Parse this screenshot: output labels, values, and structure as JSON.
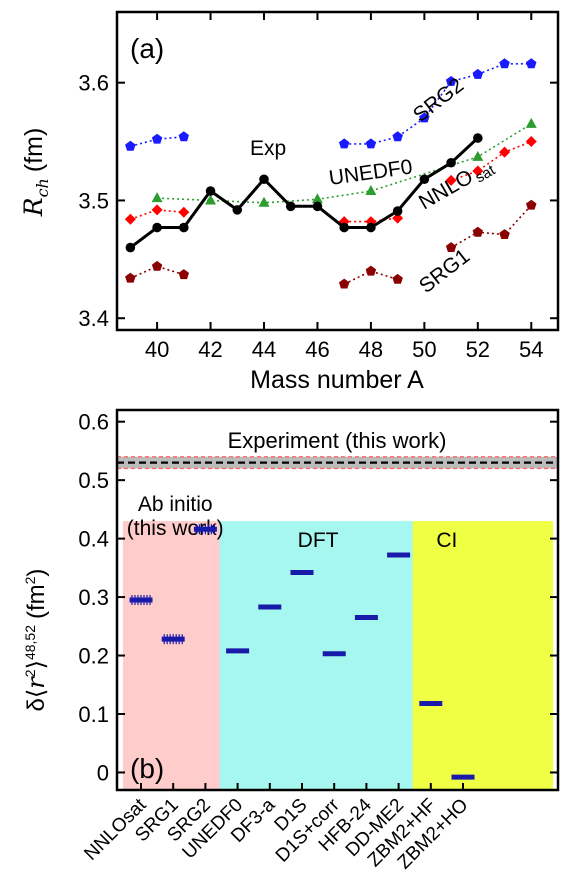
{
  "chart_data": [
    {
      "type": "line",
      "panel_label": "(a)",
      "xlabel": "Mass number A",
      "ylabel": "R_ch (fm)",
      "xlim": [
        38.5,
        55
      ],
      "ylim": [
        3.39,
        3.66
      ],
      "xticks": [
        "40",
        "42",
        "44",
        "46",
        "48",
        "50",
        "52",
        "54"
      ],
      "yticks": [
        "3.4",
        "3.5",
        "3.6"
      ],
      "series": [
        {
          "name": "Exp",
          "color": "#000000",
          "marker": "circle",
          "line": "solid",
          "segments": [
            {
              "x": [
                39,
                40,
                41,
                42,
                43,
                44,
                45,
                46,
                47,
                48,
                49,
                50,
                51,
                52
              ],
              "y": [
                3.46,
                3.477,
                3.477,
                3.508,
                3.492,
                3.518,
                3.495,
                3.495,
                3.477,
                3.477,
                3.491,
                3.518,
                3.532,
                3.553
              ]
            }
          ]
        },
        {
          "name": "SRG2",
          "color": "#1a1aff",
          "marker": "pentagon",
          "line": "dotted",
          "segments": [
            {
              "x": [
                39,
                40,
                41
              ],
              "y": [
                3.546,
                3.552,
                3.554
              ]
            },
            {
              "x": [
                47,
                48,
                49,
                50,
                51,
                52,
                53,
                54
              ],
              "y": [
                3.548,
                3.548,
                3.554,
                3.57,
                3.601,
                3.607,
                3.616,
                3.616
              ]
            }
          ]
        },
        {
          "name": "UNEDF0",
          "color": "#2d9e2d",
          "marker": "triangle",
          "line": "dotted",
          "segments": [
            {
              "x": [
                40,
                42,
                44,
                46,
                48,
                52,
                54
              ],
              "y": [
                3.502,
                3.5,
                3.498,
                3.501,
                3.508,
                3.537,
                3.565
              ]
            }
          ]
        },
        {
          "name": "NNLO sat",
          "color": "#ff0000",
          "marker": "diamond",
          "line": "dotted",
          "segments": [
            {
              "x": [
                39,
                40,
                41
              ],
              "y": [
                3.484,
                3.492,
                3.49
              ]
            },
            {
              "x": [
                47,
                48,
                49
              ],
              "y": [
                3.482,
                3.482,
                3.485
              ]
            },
            {
              "x": [
                51,
                52,
                53,
                54
              ],
              "y": [
                3.517,
                3.525,
                3.541,
                3.55
              ]
            }
          ]
        },
        {
          "name": "SRG1",
          "color": "#8b0000",
          "marker": "pentagon",
          "line": "dotted",
          "segments": [
            {
              "x": [
                39,
                40,
                41
              ],
              "y": [
                3.434,
                3.444,
                3.437
              ]
            },
            {
              "x": [
                47,
                48,
                49
              ],
              "y": [
                3.429,
                3.44,
                3.433
              ]
            },
            {
              "x": [
                51,
                52,
                53,
                54
              ],
              "y": [
                3.46,
                3.473,
                3.471,
                3.496
              ]
            }
          ]
        }
      ],
      "annotations": [
        "Exp",
        "UNEDF0",
        "SRG2",
        "NNLO",
        "sat",
        "SRG1"
      ]
    },
    {
      "type": "bar",
      "panel_label": "(b)",
      "ylabel": "δ⟨r²⟩48,52 (fm²)",
      "ylim": [
        -0.03,
        0.62
      ],
      "yticks": [
        "0",
        "0.1",
        "0.2",
        "0.3",
        "0.4",
        "0.5",
        "0.6"
      ],
      "categories": [
        "NNLOsat",
        "SRG1",
        "SRG2",
        "UNEDF0",
        "DF3-a",
        "D1S",
        "D1S+corr",
        "HFB-24",
        "DD-ME2",
        "ZBM2+HF",
        "ZBM2+HO"
      ],
      "values": [
        0.295,
        0.228,
        0.416,
        0.208,
        0.283,
        0.342,
        0.203,
        0.265,
        0.372,
        0.118,
        -0.008
      ],
      "error_bar_categories": [
        "NNLOsat",
        "SRG1",
        "SRG2"
      ],
      "bar_color": "#1a1aaa",
      "experiment": {
        "label": "Experiment (this work)",
        "value": 0.53,
        "band": [
          0.52,
          0.54
        ],
        "band_color": "#bbbbbb"
      },
      "groups": [
        {
          "label_line1": "Ab initio",
          "label_line2": "(this work)",
          "from": 0,
          "to": 2,
          "color": "#ffcccc"
        },
        {
          "label_line1": "DFT",
          "label_line2": "",
          "from": 3,
          "to": 8,
          "color": "#a6f7f0"
        },
        {
          "label_line1": "CI",
          "label_line2": "",
          "from": 9,
          "to": 10,
          "color": "#eeff44"
        }
      ]
    }
  ]
}
